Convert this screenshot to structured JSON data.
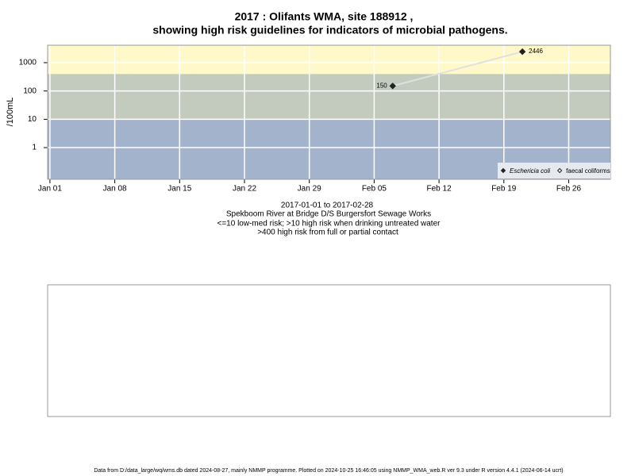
{
  "chart_data": {
    "type": "line",
    "title": "2017 : Olifants WMA, site 188912 ,",
    "title_line2": "showing high risk guidelines for indicators of microbial pathogens.",
    "ylabel": "/100mL",
    "subtitle": [
      "2017-01-01 to 2017-02-28",
      "Spekboom River at Bridge D/S Burgersfort Sewage Works",
      "<=10 low-med risk; >10 high risk when drinking untreated water",
      ">400 high risk from full or partial contact"
    ],
    "footer": "Data from D:/data_large/wq/wms.db dated 2024-08-27, mainly NMMP programme. Plotted on 2024-10-25 16:46:05 using NMMP_WMA_web.R ver 9.3 under R version 4.4.1 (2024-06-14 ucrt)",
    "x": [
      "2017-02-07",
      "2017-02-21"
    ],
    "series": [
      {
        "name": "Eschericia coli",
        "color": "#222222",
        "line_color": "#e0e0e0",
        "values": [
          150,
          2446
        ],
        "marker": "filled-diamond"
      },
      {
        "name": "faecal coliforms",
        "color": "#222222",
        "values": [
          null,
          null
        ],
        "marker": "open-diamond"
      }
    ],
    "xlim": [
      "2016-12-31T18:00",
      "2017-03-02T12:00"
    ],
    "xticks": [
      {
        "value": "2017-01-01",
        "label": "Jan 01"
      },
      {
        "value": "2017-01-08",
        "label": "Jan 08"
      },
      {
        "value": "2017-01-15",
        "label": "Jan 15"
      },
      {
        "value": "2017-01-22",
        "label": "Jan 22"
      },
      {
        "value": "2017-01-29",
        "label": "Jan 29"
      },
      {
        "value": "2017-02-05",
        "label": "Feb 05"
      },
      {
        "value": "2017-02-12",
        "label": "Feb 12"
      },
      {
        "value": "2017-02-19",
        "label": "Feb 19"
      },
      {
        "value": "2017-02-26",
        "label": "Feb 26"
      }
    ],
    "ylim": [
      0.076,
      4130
    ],
    "yticks": [
      1,
      10,
      100,
      1000
    ],
    "log_y": true,
    "grid": true,
    "thresholds": [
      10,
      400
    ],
    "band_colors": [
      "#a3b3cc",
      "#c3cbbf",
      "#fff8c8"
    ],
    "legend": "bottom-right"
  }
}
